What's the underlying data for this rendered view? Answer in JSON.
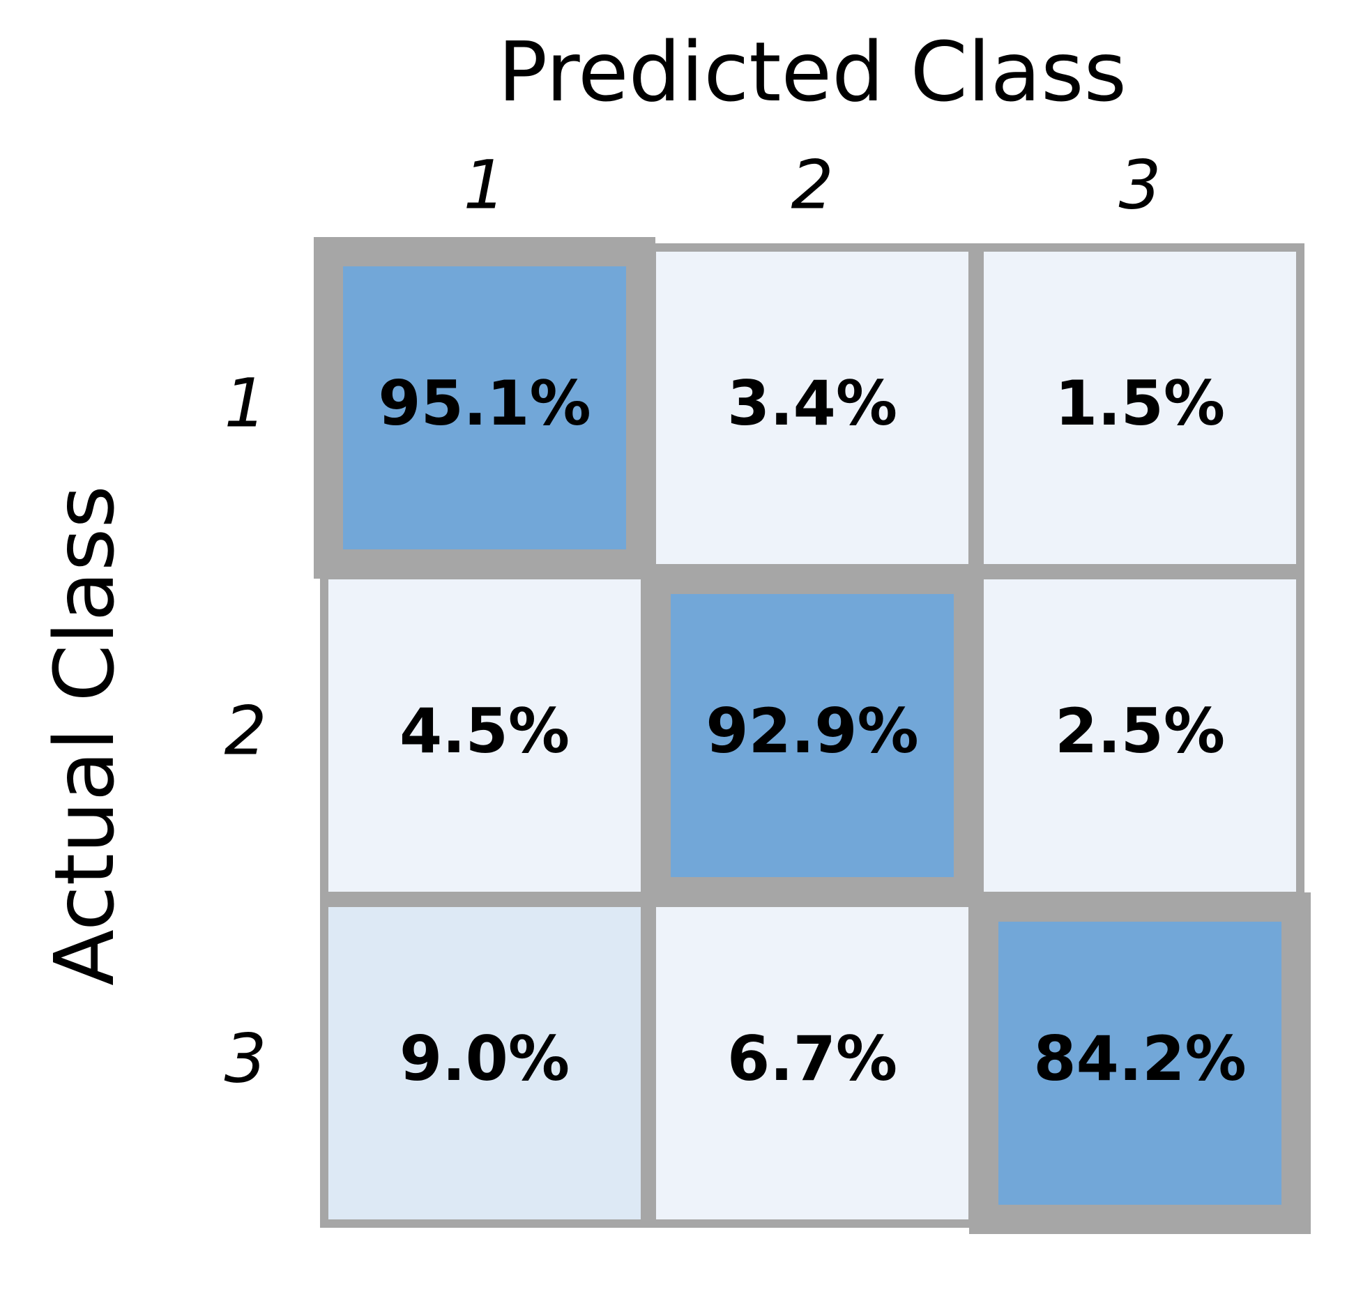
{
  "chart_data": {
    "type": "heatmap",
    "x_label": "Predicted Class",
    "y_label": "Actual Class",
    "x_categories": [
      "1",
      "2",
      "3"
    ],
    "y_categories": [
      "1",
      "2",
      "3"
    ],
    "values": [
      [
        95.1,
        3.4,
        1.5
      ],
      [
        4.5,
        92.9,
        2.5
      ],
      [
        9.0,
        6.7,
        84.2
      ]
    ],
    "value_labels": [
      [
        "95.1%",
        "3.4%",
        "1.5%"
      ],
      [
        "4.5%",
        "92.9%",
        "2.5%"
      ],
      [
        "9.0%",
        "6.7%",
        "84.2%"
      ]
    ],
    "cell_colors": [
      [
        "#72a7d8",
        "#eef3fa",
        "#eef3fa"
      ],
      [
        "#eef3fa",
        "#72a7d8",
        "#eef3fa"
      ],
      [
        "#dde9f5",
        "#eef3fa",
        "#72a7d8"
      ]
    ],
    "border_color": "#a6a6a6",
    "highlight_diagonal": true
  }
}
